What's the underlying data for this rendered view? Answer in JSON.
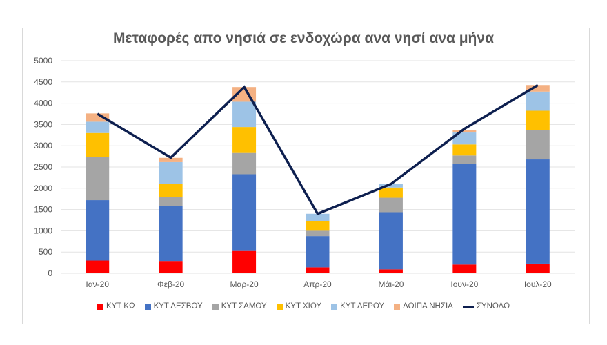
{
  "chart_data": {
    "type": "bar",
    "stacked": true,
    "title": "Μεταφορές απο νησιά σε ενδοχώρα ανα νησί ανα μήνα",
    "xlabel": "",
    "ylabel": "",
    "ylim": [
      0,
      5000
    ],
    "yticks": [
      0,
      500,
      1000,
      1500,
      2000,
      2500,
      3000,
      3500,
      4000,
      4500,
      5000
    ],
    "grid": true,
    "legend_position": "bottom",
    "categories": [
      "Ιαν-20",
      "Φεβ-20",
      "Μαρ-20",
      "Απρ-20",
      "Μάι-20",
      "Ιουν-20",
      "Ιουλ-20"
    ],
    "series": [
      {
        "name": "ΚΥΤ ΚΩ",
        "color": "#ff0000",
        "values": [
          300,
          290,
          525,
          140,
          92,
          206,
          228
        ]
      },
      {
        "name": "ΚΥΤ ΛΕΣΒΟΥ",
        "color": "#4472c4",
        "values": [
          1420,
          1300,
          1805,
          735,
          1345,
          2360,
          2450
        ]
      },
      {
        "name": "ΚΥΤ ΣΑΜΟΥ",
        "color": "#a5a5a5",
        "values": [
          1020,
          205,
          500,
          125,
          340,
          205,
          685
        ]
      },
      {
        "name": "ΚΥΤ ΧΙΟΥ",
        "color": "#ffc000",
        "values": [
          560,
          300,
          610,
          230,
          240,
          260,
          460
        ]
      },
      {
        "name": "ΚΥΤ ΛΕΡΟΥ",
        "color": "#9dc3e6",
        "values": [
          265,
          520,
          595,
          170,
          85,
          280,
          450
        ]
      },
      {
        "name": "ΛΟΙΠΑ ΝΗΣΙΑ",
        "color": "#f4b183",
        "values": [
          195,
          100,
          345,
          0,
          0,
          60,
          155
        ]
      }
    ],
    "line_series": {
      "name": "ΣΥΝΟΛΟ",
      "color": "#0d1f4f",
      "values": [
        3750,
        2720,
        4380,
        1400,
        2100,
        3400,
        4425
      ]
    }
  }
}
